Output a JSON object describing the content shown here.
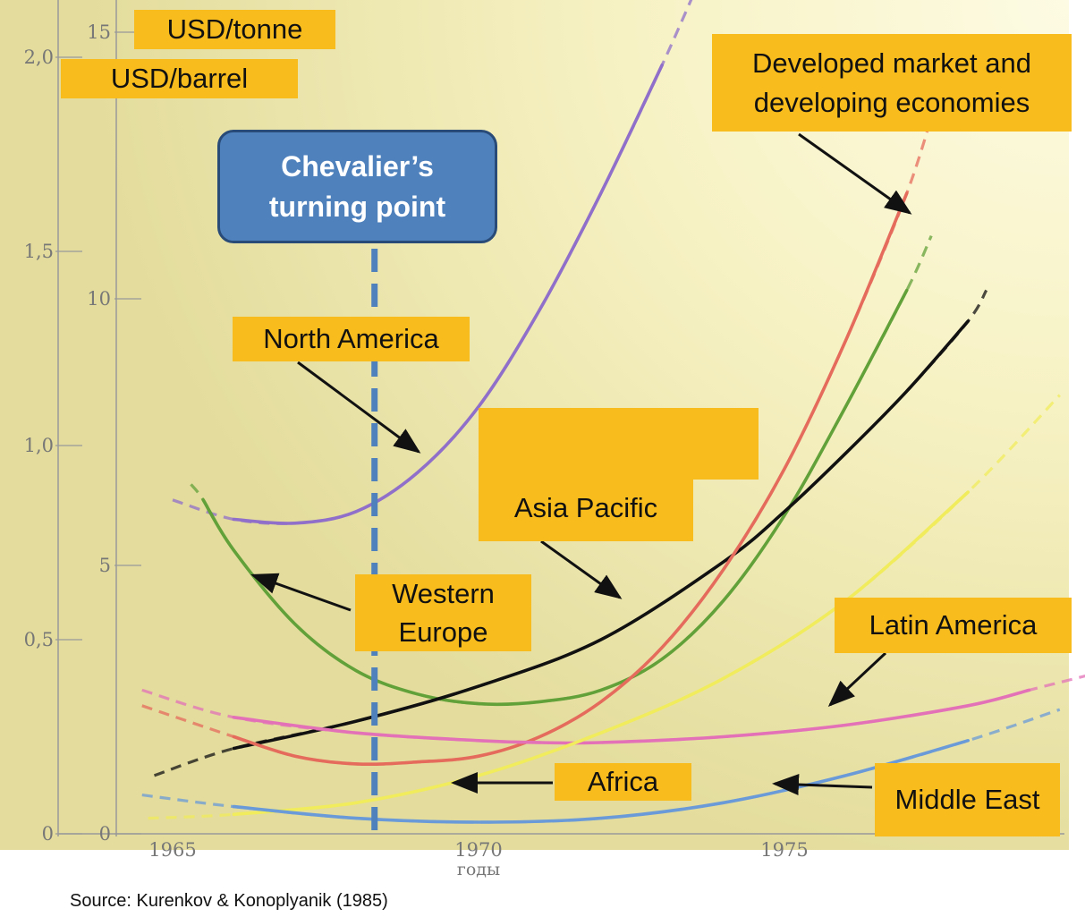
{
  "chart_data": {
    "type": "line",
    "x_axis": {
      "label": "годы",
      "ticks": [
        "1965",
        "1970",
        "1975"
      ],
      "range": [
        1964.3,
        1980.5
      ]
    },
    "y_axis_left": {
      "unit": "USD/barrel",
      "ticks": [
        "0",
        "0,5",
        "1,0",
        "1,5",
        "2,0"
      ],
      "range": [
        0,
        2.1
      ]
    },
    "y_axis_right": {
      "unit": "USD/tonne",
      "ticks": [
        "0",
        "5",
        "10",
        "15"
      ]
    },
    "series": [
      {
        "name": "North America",
        "color": "#8f6fc9",
        "solid_from": 1966,
        "x": [
          1965,
          1966,
          1967,
          1968,
          1969,
          1970,
          1971,
          1972,
          1973,
          1973.7
        ],
        "y": [
          0.86,
          0.81,
          0.8,
          0.83,
          0.93,
          1.1,
          1.35,
          1.65,
          1.98,
          2.23
        ]
      },
      {
        "name": "Western Europe",
        "color": "#62a13a",
        "solid_from": 1965.5,
        "x": [
          1965.3,
          1965.5,
          1966,
          1967,
          1968,
          1969,
          1970,
          1971,
          1972,
          1973,
          1974,
          1975,
          1976,
          1977,
          1977.4
        ],
        "y": [
          0.9,
          0.86,
          0.73,
          0.54,
          0.42,
          0.36,
          0.335,
          0.34,
          0.37,
          0.45,
          0.6,
          0.82,
          1.1,
          1.4,
          1.54
        ]
      },
      {
        "name": "Asia Pacific",
        "color": "#111111",
        "solid_from": 1965.8,
        "x": [
          1964.7,
          1966,
          1968,
          1970,
          1972,
          1974,
          1975,
          1976,
          1977,
          1978,
          1978.3
        ],
        "y": [
          0.15,
          0.22,
          0.29,
          0.38,
          0.5,
          0.7,
          0.83,
          0.98,
          1.14,
          1.32,
          1.4
        ]
      },
      {
        "name": "Developed market and developing economies",
        "color": "#e56b5c",
        "solid_from": 1965.5,
        "x": [
          1964.5,
          1966,
          1967,
          1968,
          1969,
          1970,
          1971,
          1972,
          1973,
          1974,
          1975,
          1976,
          1977,
          1977.5
        ],
        "y": [
          0.33,
          0.25,
          0.2,
          0.18,
          0.185,
          0.2,
          0.25,
          0.34,
          0.48,
          0.68,
          0.94,
          1.27,
          1.65,
          1.9
        ]
      },
      {
        "name": "Latin America",
        "color": "#e371b8",
        "solid_from": 1965.5,
        "x": [
          1964.5,
          1966,
          1968,
          1970,
          1971,
          1972,
          1974,
          1976,
          1978,
          1979,
          1980
        ],
        "y": [
          0.37,
          0.3,
          0.26,
          0.24,
          0.235,
          0.235,
          0.25,
          0.28,
          0.33,
          0.37,
          0.41
        ]
      },
      {
        "name": "Africa",
        "color": "#f0ec5c",
        "solid_from": 1966,
        "x": [
          1964.6,
          1966,
          1968,
          1970,
          1972,
          1974,
          1976,
          1978,
          1979.5
        ],
        "y": [
          0.04,
          0.05,
          0.08,
          0.15,
          0.26,
          0.4,
          0.6,
          0.88,
          1.13
        ]
      },
      {
        "name": "Middle East",
        "color": "#6a9bd8",
        "solid_from": 1966,
        "x": [
          1964.5,
          1966,
          1968,
          1970,
          1972,
          1974,
          1976,
          1978,
          1979.5
        ],
        "y": [
          0.1,
          0.07,
          0.04,
          0.03,
          0.04,
          0.08,
          0.15,
          0.24,
          0.32
        ]
      }
    ],
    "turning_point_x": 1968.3
  },
  "labels": {
    "usd_tonne": "USD/tonne",
    "usd_barrel": "USD/barrel",
    "turning_line1": "Chevalier’s",
    "turning_line2": "turning point",
    "north_america": "North America",
    "asia_pacific": "Asia Pacific",
    "western_europe_line1": "Western",
    "western_europe_line2": "Europe",
    "developed_line1": "Developed market and",
    "developed_line2": "developing economies",
    "latin_america": "Latin America",
    "africa": "Africa",
    "middle_east": "Middle East"
  },
  "source": "Source: Kurenkov & Konoplyanik (1985)",
  "colors": {
    "label_fill": "#f8bc1c",
    "turning_fill": "#4f81bd",
    "turning_line": "#4f81bd"
  }
}
